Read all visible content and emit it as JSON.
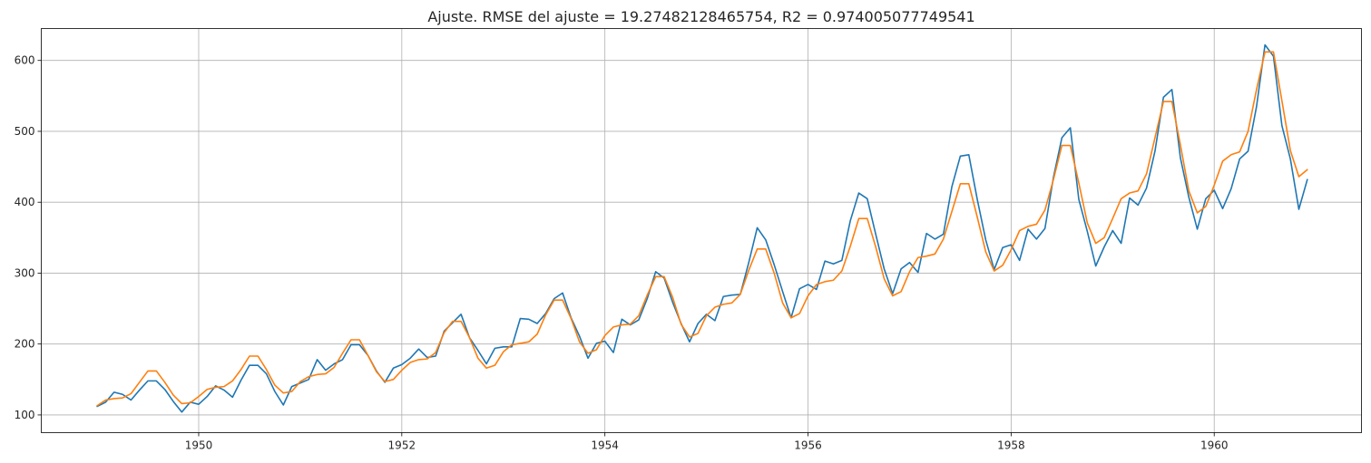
{
  "chart_data": {
    "type": "line",
    "title": "Ajuste. RMSE del ajuste = 19.27482128465754, R2 = 0.974005077749541",
    "xlabel": "",
    "ylabel": "",
    "x_start": "1949-01",
    "x_step": "month",
    "xlim": [
      1948.45,
      1961.45
    ],
    "ylim": [
      75,
      645
    ],
    "xticks": [
      1950,
      1952,
      1954,
      1956,
      1958,
      1960
    ],
    "yticks": [
      100,
      200,
      300,
      400,
      500,
      600
    ],
    "grid": true,
    "series": [
      {
        "color": "#1f77b4",
        "values": [
          112,
          118,
          132,
          129,
          121,
          135,
          148,
          148,
          136,
          119,
          104,
          118,
          115,
          126,
          141,
          135,
          125,
          149,
          170,
          170,
          158,
          133,
          114,
          140,
          145,
          150,
          178,
          163,
          172,
          178,
          199,
          199,
          184,
          162,
          146,
          166,
          171,
          180,
          193,
          181,
          183,
          218,
          230,
          242,
          209,
          191,
          172,
          194,
          196,
          196,
          236,
          235,
          229,
          243,
          264,
          272,
          237,
          211,
          180,
          201,
          204,
          188,
          235,
          227,
          234,
          264,
          302,
          293,
          259,
          229,
          203,
          229,
          242,
          233,
          267,
          269,
          270,
          315,
          364,
          347,
          312,
          274,
          237,
          278,
          284,
          277,
          317,
          313,
          318,
          374,
          413,
          405,
          355,
          306,
          271,
          306,
          315,
          301,
          356,
          348,
          355,
          422,
          465,
          467,
          404,
          347,
          305,
          336,
          340,
          318,
          362,
          348,
          363,
          435,
          491,
          505,
          404,
          359,
          310,
          337,
          360,
          342,
          406,
          396,
          420,
          472,
          548,
          559,
          463,
          407,
          362,
          405,
          417,
          391,
          419,
          461,
          472,
          535,
          622,
          606,
          508,
          461,
          390,
          432
        ]
      },
      {
        "color": "#ff7f0e",
        "values": [
          113,
          121,
          123,
          124,
          130,
          146,
          162,
          162,
          146,
          128,
          116,
          117,
          126,
          136,
          139,
          140,
          148,
          164,
          183,
          183,
          164,
          142,
          131,
          133,
          147,
          154,
          157,
          158,
          167,
          187,
          206,
          206,
          184,
          161,
          147,
          150,
          163,
          174,
          178,
          179,
          188,
          216,
          232,
          232,
          209,
          180,
          166,
          170,
          189,
          199,
          201,
          203,
          214,
          241,
          262,
          262,
          236,
          203,
          187,
          192,
          212,
          224,
          227,
          228,
          240,
          269,
          295,
          295,
          266,
          228,
          210,
          215,
          240,
          252,
          256,
          258,
          270,
          304,
          334,
          334,
          300,
          258,
          237,
          243,
          268,
          284,
          288,
          290,
          303,
          338,
          377,
          377,
          337,
          292,
          268,
          274,
          302,
          322,
          324,
          327,
          348,
          387,
          426,
          426,
          379,
          330,
          303,
          311,
          333,
          360,
          366,
          369,
          389,
          432,
          480,
          480,
          427,
          371,
          342,
          350,
          377,
          405,
          413,
          416,
          440,
          491,
          542,
          542,
          481,
          416,
          385,
          394,
          424,
          458,
          467,
          471,
          500,
          559,
          612,
          612,
          543,
          473,
          436,
          446
        ]
      }
    ]
  }
}
